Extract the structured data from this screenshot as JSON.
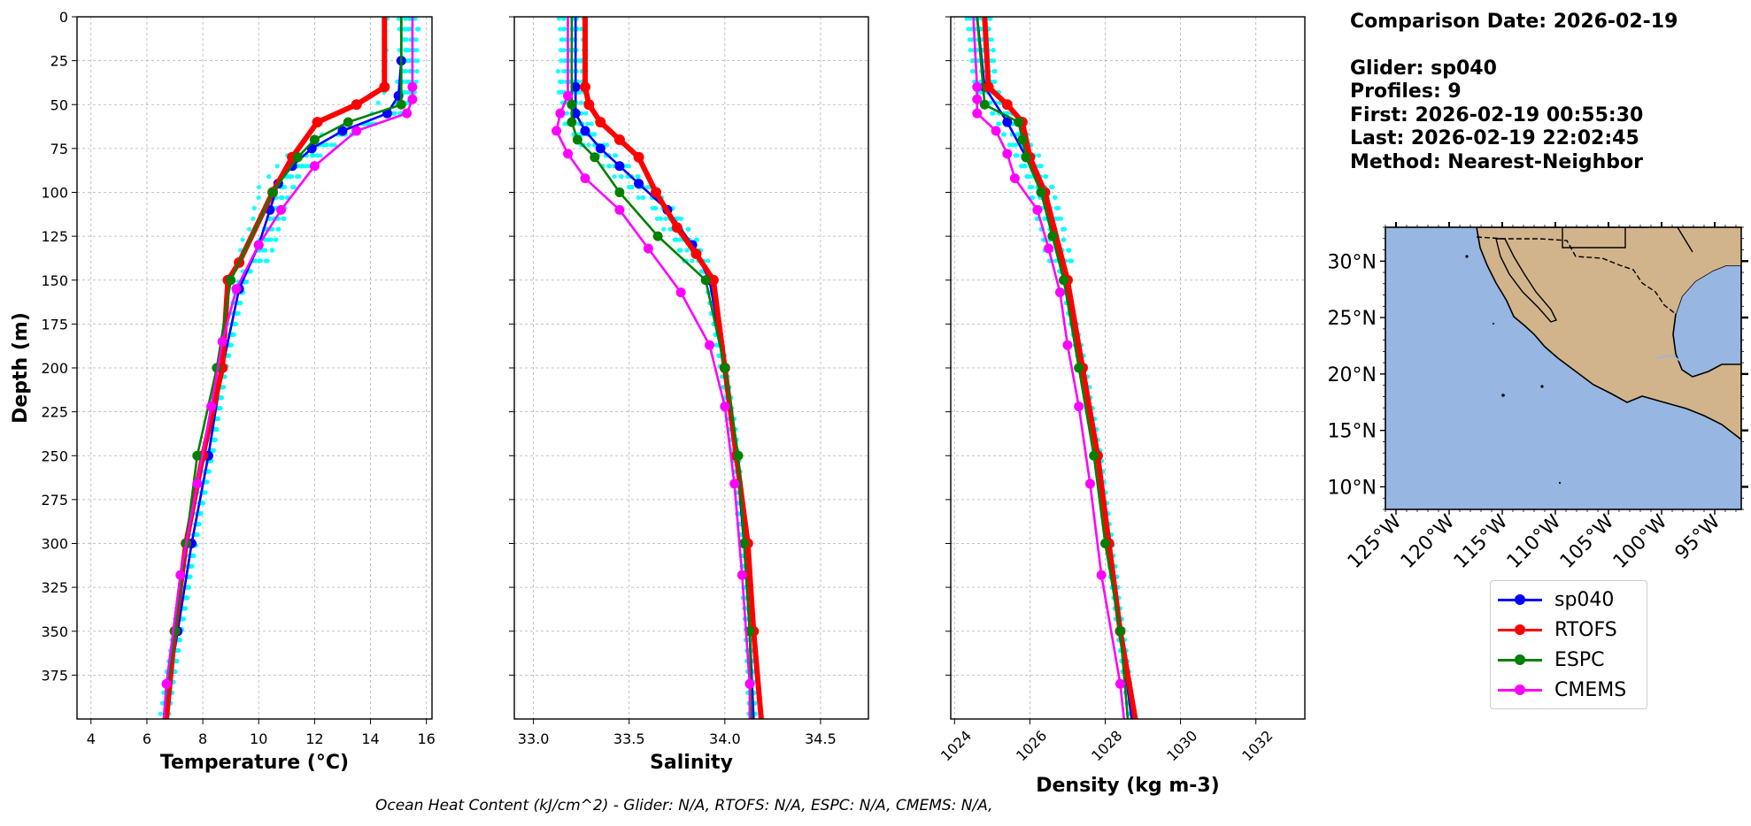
{
  "info": {
    "comparison_date": "Comparison Date: 2026-02-19",
    "glider": "Glider: sp040",
    "profiles": "Profiles: 9",
    "first": "First: 2026-02-19 00:55:30",
    "last": "Last: 2026-02-19 22:02:45",
    "method": "Method: Nearest-Neighbor"
  },
  "footer": "Ocean Heat Content (kJ/cm^2) - Glider: N/A,  RTOFS: N/A,  ESPC: N/A,  CMEMS: N/A,",
  "legend": [
    {
      "name": "sp040",
      "color": "#0000ff"
    },
    {
      "name": "RTOFS",
      "color": "#ff0000"
    },
    {
      "name": "ESPC",
      "color": "#008000"
    },
    {
      "name": "CMEMS",
      "color": "#ff00ff"
    }
  ],
  "chart_data": [
    {
      "type": "line",
      "ylabel": "Depth (m)",
      "xlabel": "Temperature (°C)",
      "xlim": [
        3.5,
        16.2
      ],
      "ylim": [
        400,
        0
      ],
      "xticks": [
        4,
        6,
        8,
        10,
        12,
        14,
        16
      ],
      "yticks": [
        0,
        25,
        50,
        75,
        100,
        125,
        150,
        175,
        200,
        225,
        250,
        275,
        300,
        325,
        350,
        375
      ],
      "grid": true,
      "series": [
        {
          "name": "sp040",
          "color": "#0000ff",
          "depth": [
            0,
            25,
            45,
            55,
            65,
            75,
            85,
            95,
            110,
            130,
            155,
            200,
            250,
            300,
            350,
            400
          ],
          "values": [
            15.1,
            15.1,
            15.0,
            14.6,
            13.0,
            11.9,
            11.2,
            10.7,
            10.4,
            10.0,
            9.3,
            8.7,
            8.2,
            7.6,
            7.1,
            6.6
          ]
        },
        {
          "name": "RTOFS",
          "color": "#ff0000",
          "depth": [
            0,
            40,
            50,
            60,
            80,
            100,
            140,
            150,
            200,
            250,
            300,
            350,
            400
          ],
          "values": [
            14.5,
            14.5,
            13.5,
            12.1,
            11.2,
            10.5,
            9.3,
            8.9,
            8.7,
            8.0,
            7.4,
            7.0,
            6.7
          ]
        },
        {
          "name": "ESPC",
          "color": "#008000",
          "depth": [
            0,
            50,
            60,
            70,
            80,
            100,
            150,
            200,
            250,
            300,
            350,
            400
          ],
          "values": [
            15.1,
            15.1,
            13.2,
            12.0,
            11.4,
            10.5,
            9.0,
            8.5,
            7.8,
            7.4,
            7.0,
            6.6
          ]
        },
        {
          "name": "CMEMS",
          "color": "#ff00ff",
          "depth": [
            0,
            40,
            47,
            55,
            65,
            85,
            110,
            130,
            155,
            185,
            222,
            266,
            318,
            380,
            400
          ],
          "values": [
            15.5,
            15.5,
            15.5,
            15.3,
            13.5,
            12.0,
            10.8,
            10.0,
            9.2,
            8.7,
            8.3,
            7.8,
            7.2,
            6.7,
            6.6
          ]
        }
      ]
    },
    {
      "type": "line",
      "xlabel": "Salinity",
      "xlim": [
        32.9,
        34.75
      ],
      "ylim": [
        400,
        0
      ],
      "xticks": [
        33.0,
        33.5,
        34.0,
        34.5
      ],
      "grid": true,
      "series": [
        {
          "name": "sp040",
          "color": "#0000ff",
          "depth": [
            0,
            40,
            55,
            65,
            75,
            85,
            95,
            110,
            130,
            150,
            200,
            250,
            300,
            350,
            400
          ],
          "values": [
            33.22,
            33.22,
            33.22,
            33.27,
            33.35,
            33.45,
            33.55,
            33.7,
            33.83,
            33.92,
            34.0,
            34.06,
            34.1,
            34.13,
            34.15
          ]
        },
        {
          "name": "RTOFS",
          "color": "#ff0000",
          "depth": [
            0,
            40,
            50,
            60,
            70,
            80,
            100,
            120,
            135,
            150,
            200,
            250,
            300,
            350,
            400
          ],
          "values": [
            33.27,
            33.27,
            33.29,
            33.35,
            33.45,
            33.55,
            33.64,
            33.75,
            33.85,
            33.94,
            34.0,
            34.06,
            34.12,
            34.15,
            34.19
          ]
        },
        {
          "name": "ESPC",
          "color": "#008000",
          "depth": [
            0,
            50,
            60,
            70,
            80,
            100,
            125,
            150,
            200,
            250,
            300,
            350,
            400
          ],
          "values": [
            33.2,
            33.2,
            33.2,
            33.23,
            33.32,
            33.45,
            33.65,
            33.9,
            34.0,
            34.07,
            34.1,
            34.13,
            34.14
          ]
        },
        {
          "name": "CMEMS",
          "color": "#ff00ff",
          "depth": [
            0,
            45,
            55,
            65,
            78,
            92,
            110,
            132,
            157,
            187,
            222,
            266,
            318,
            380,
            400
          ],
          "values": [
            33.18,
            33.18,
            33.14,
            33.12,
            33.18,
            33.27,
            33.45,
            33.6,
            33.77,
            33.92,
            34.0,
            34.05,
            34.09,
            34.13,
            34.13
          ]
        }
      ]
    },
    {
      "type": "line",
      "xlabel": "Density (kg m-3)",
      "xlim": [
        1023.9,
        1033.3
      ],
      "ylim": [
        400,
        0
      ],
      "xticks": [
        1024,
        1026,
        1028,
        1030,
        1032
      ],
      "grid": true,
      "series": [
        {
          "name": "sp040",
          "color": "#0000ff",
          "depth": [
            0,
            40,
            60,
            80,
            100,
            150,
            200,
            250,
            300,
            350,
            400
          ],
          "values": [
            1024.6,
            1024.8,
            1025.4,
            1025.9,
            1026.3,
            1026.9,
            1027.4,
            1027.8,
            1028.1,
            1028.4,
            1028.7
          ]
        },
        {
          "name": "RTOFS",
          "color": "#ff0000",
          "depth": [
            0,
            40,
            50,
            60,
            80,
            100,
            150,
            200,
            250,
            300,
            350,
            400
          ],
          "values": [
            1024.8,
            1024.9,
            1025.4,
            1025.8,
            1026.0,
            1026.4,
            1027.0,
            1027.4,
            1027.8,
            1028.1,
            1028.4,
            1028.8
          ]
        },
        {
          "name": "ESPC",
          "color": "#008000",
          "depth": [
            0,
            50,
            60,
            70,
            80,
            100,
            125,
            150,
            200,
            250,
            300,
            350,
            400
          ],
          "values": [
            1024.6,
            1024.8,
            1025.7,
            1025.8,
            1025.9,
            1026.3,
            1026.6,
            1026.9,
            1027.3,
            1027.7,
            1028.0,
            1028.4,
            1028.6
          ]
        },
        {
          "name": "CMEMS",
          "color": "#ff00ff",
          "depth": [
            0,
            40,
            47,
            55,
            65,
            78,
            92,
            110,
            132,
            157,
            187,
            222,
            266,
            318,
            380,
            400
          ],
          "values": [
            1024.5,
            1024.6,
            1024.6,
            1024.6,
            1025.1,
            1025.4,
            1025.6,
            1026.2,
            1026.5,
            1026.8,
            1027.0,
            1027.3,
            1027.6,
            1027.9,
            1028.4,
            1028.5
          ]
        }
      ]
    },
    {
      "type": "map",
      "xlim_lon": [
        -126,
        -92.5
      ],
      "ylim_lat": [
        8,
        33
      ],
      "xticks": [
        "125°W",
        "120°W",
        "115°W",
        "110°W",
        "105°W",
        "100°W",
        "95°W"
      ],
      "yticks": [
        "30°N",
        "25°N",
        "20°N",
        "15°N",
        "10°N"
      ],
      "ocean_color": "#97b6e1",
      "land_color": "#d2b48c"
    }
  ]
}
